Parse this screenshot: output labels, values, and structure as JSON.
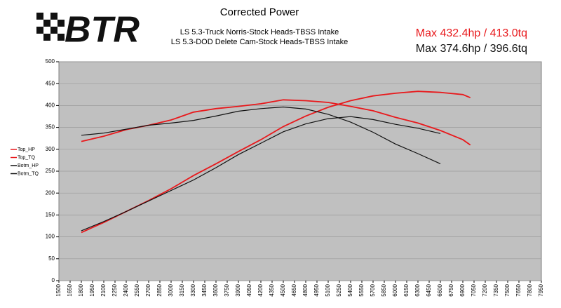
{
  "chart_data": {
    "type": "line",
    "logo_text": "BTR",
    "title": "Corrected Power",
    "subtitle": [
      "LS 5.3-Truck Norris-Stock Heads-TBSS Intake",
      "LS 5.3-DOD Delete Cam-Stock Heads-TBSS Intake"
    ],
    "annotations": [
      {
        "text": "Max 432.4hp / 413.0tq",
        "color": "#e8191c"
      },
      {
        "text": "Max 374.6hp / 396.6tq",
        "color": "#111111"
      }
    ],
    "x": [
      1800,
      2100,
      2400,
      2700,
      3000,
      3300,
      3600,
      3900,
      4200,
      4500,
      4800,
      5100,
      5400,
      5700,
      6000,
      6300,
      6600,
      6900,
      7000
    ],
    "series": [
      {
        "name": "Top_HP",
        "color": "#e8191c",
        "values": [
          110,
          133,
          158,
          183,
          210,
          240,
          267,
          295,
          322,
          352,
          376,
          396,
          411,
          422,
          428,
          432.4,
          430,
          425,
          418
        ]
      },
      {
        "name": "Top_TQ",
        "color": "#e8191c",
        "values": [
          318,
          330,
          345,
          355,
          367,
          385,
          393,
          398,
          404,
          413,
          411,
          407,
          398,
          388,
          373,
          360,
          343,
          322,
          310
        ]
      },
      {
        "name": "Botm_HP",
        "color": "#111111",
        "values": [
          114,
          135,
          158,
          182,
          206,
          230,
          258,
          288,
          314,
          340,
          358,
          370,
          374.6,
          368,
          357,
          348,
          336,
          null,
          null
        ]
      },
      {
        "name": "Botm_TQ",
        "color": "#111111",
        "values": [
          332,
          337,
          346,
          355,
          360,
          366,
          376,
          387,
          393,
          396.6,
          392,
          380,
          362,
          339,
          312,
          290,
          267,
          null,
          null
        ]
      }
    ],
    "xlim": [
      1500,
      7950
    ],
    "xticks": [
      1500,
      1650,
      1800,
      1950,
      2100,
      2250,
      2400,
      2550,
      2700,
      2850,
      3000,
      3150,
      3300,
      3450,
      3600,
      3750,
      3900,
      4050,
      4200,
      4350,
      4500,
      4650,
      4800,
      4950,
      5100,
      5250,
      5400,
      5550,
      5700,
      5850,
      6000,
      6150,
      6300,
      6450,
      6600,
      6750,
      6900,
      7050,
      7200,
      7350,
      7500,
      7650,
      7800,
      7950
    ],
    "ylim": [
      0,
      500
    ],
    "yticks": [
      0,
      50,
      100,
      150,
      200,
      250,
      300,
      350,
      400,
      450,
      500
    ],
    "grid": true,
    "legend": "left"
  }
}
